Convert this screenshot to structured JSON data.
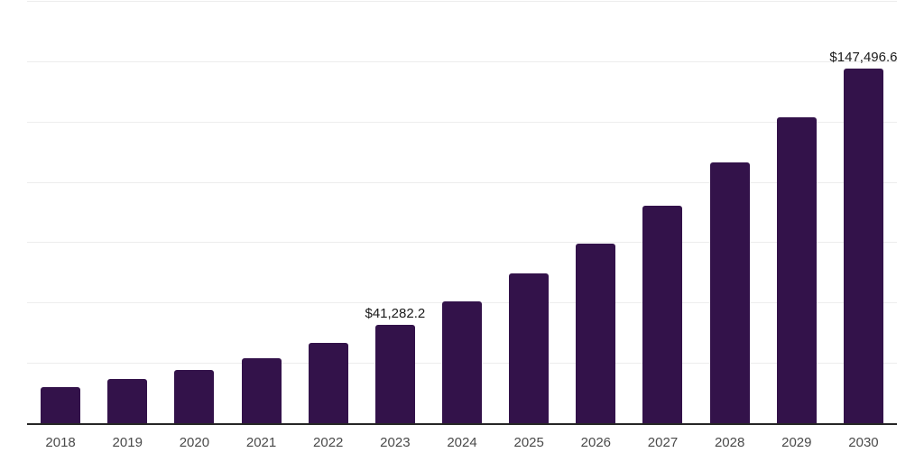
{
  "chart_data": {
    "type": "bar",
    "title": "",
    "xlabel": "",
    "ylabel": "",
    "categories": [
      "2018",
      "2019",
      "2020",
      "2021",
      "2022",
      "2023",
      "2024",
      "2025",
      "2026",
      "2027",
      "2028",
      "2029",
      "2030"
    ],
    "values": [
      15500,
      18600,
      22400,
      27400,
      33700,
      41282.2,
      51000,
      62600,
      74700,
      90400,
      108300,
      127100,
      147496.6
    ],
    "data_labels": [
      "",
      "",
      "",
      "",
      "",
      "$41,282.2",
      "",
      "",
      "",
      "",
      "",
      "",
      "$147,496.6"
    ],
    "ylim": [
      0,
      175000
    ],
    "gridline_step": 25000,
    "grid": "horizontal",
    "y_tick_labels_visible": false,
    "legend_position": "none",
    "colors": {
      "bar": "#33124a",
      "axis_line": "#262626",
      "gridline": "#ededed",
      "x_tick_label": "#4a4a4a",
      "data_label": "#1a1a1a",
      "background": "#ffffff"
    }
  }
}
